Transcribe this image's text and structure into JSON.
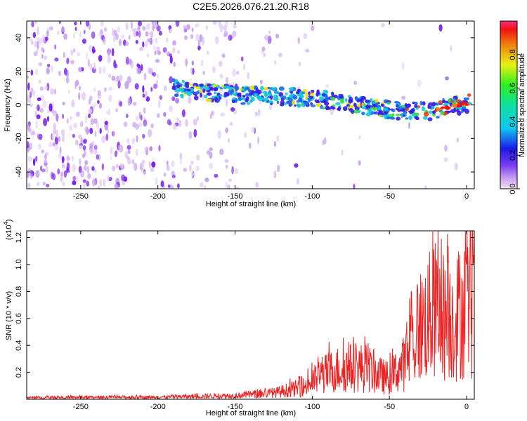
{
  "title": "C2E5.2026.076.21.20.R18",
  "chart_data": [
    {
      "type": "heatmap",
      "name": "spectrogram",
      "xlabel": "Height of straight line (km)",
      "ylabel": "Frequency (Hz)",
      "xlim": [
        -285,
        5
      ],
      "ylim": [
        -50,
        50
      ],
      "xticks": [
        -250,
        -200,
        -150,
        -100,
        -50,
        0
      ],
      "yticks": [
        -40,
        -20,
        0,
        20,
        40
      ],
      "colorbar": {
        "label": "Normalized spectral amplitude",
        "range": [
          0.0,
          1.0
        ],
        "ticks": [
          "0.0",
          "0.2",
          "0.4",
          "0.6",
          "0.8"
        ],
        "tick_values": [
          0.0,
          0.2,
          0.4,
          0.6,
          0.8
        ]
      },
      "signal_trace": [
        {
          "x": -190,
          "y": 10
        },
        {
          "x": -150,
          "y": 6
        },
        {
          "x": -100,
          "y": 4
        },
        {
          "x": -75,
          "y": 1
        },
        {
          "x": -50,
          "y": -3
        },
        {
          "x": -25,
          "y": -4
        },
        {
          "x": 0,
          "y": 1
        }
      ]
    },
    {
      "type": "line",
      "name": "snr",
      "xlabel": "Height of straight line (km)",
      "ylabel": "SNR (10 * v/v)",
      "y_multiplier": "(x10",
      "y_multiplier_exp": "4",
      "y_multiplier_close": ")",
      "xlim": [
        -285,
        5
      ],
      "ylim": [
        0,
        1.25
      ],
      "xticks": [
        -250,
        -200,
        -150,
        -100,
        -50,
        0
      ],
      "yticks": [
        "0.2",
        "0.4",
        "0.6",
        "0.8",
        "1.0",
        "1.2"
      ],
      "series_color": "#ee2222",
      "envelope": [
        {
          "x": -285,
          "y": 0.015
        },
        {
          "x": -200,
          "y": 0.02
        },
        {
          "x": -150,
          "y": 0.035
        },
        {
          "x": -125,
          "y": 0.06
        },
        {
          "x": -105,
          "y": 0.12
        },
        {
          "x": -95,
          "y": 0.22
        },
        {
          "x": -85,
          "y": 0.28
        },
        {
          "x": -75,
          "y": 0.3
        },
        {
          "x": -65,
          "y": 0.3
        },
        {
          "x": -55,
          "y": 0.22
        },
        {
          "x": -50,
          "y": 0.2
        },
        {
          "x": -40,
          "y": 0.35
        },
        {
          "x": -30,
          "y": 0.7
        },
        {
          "x": -20,
          "y": 0.85
        },
        {
          "x": -10,
          "y": 0.75
        },
        {
          "x": 0,
          "y": 0.9
        },
        {
          "x": 5,
          "y": 0.95
        }
      ]
    }
  ]
}
